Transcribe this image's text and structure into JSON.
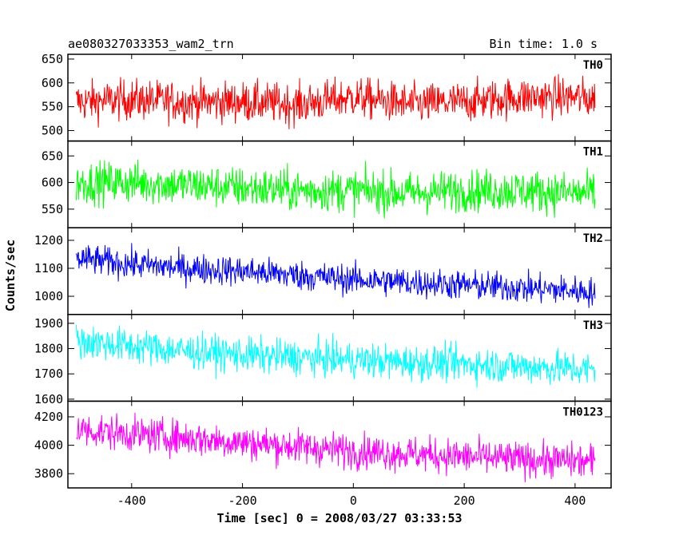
{
  "chart_data": {
    "type": "line",
    "title": "ae080327033353_wam2_trn",
    "subtitle": "Bin time: 1.0 s",
    "xlabel": "Time [sec] 0 = 2008/03/27 03:33:53",
    "ylabel": "Counts/sec",
    "xlim": [
      -515,
      465
    ],
    "x_ticks": [
      -400,
      -200,
      0,
      200,
      400
    ],
    "x_range": [
      -500,
      436
    ],
    "bin_time_s": 1.0,
    "grid": false,
    "legend": "none",
    "panels": [
      {
        "name": "TH0",
        "color": "#ff0000",
        "ylim": [
          478,
          660
        ],
        "y_ticks": [
          500,
          550,
          600,
          650
        ],
        "x": [
          -500,
          -400,
          -300,
          -200,
          -100,
          0,
          100,
          200,
          300,
          400,
          436
        ],
        "mean": [
          560,
          565,
          560,
          560,
          555,
          570,
          555,
          560,
          570,
          570,
          565
        ],
        "spread": 38
      },
      {
        "name": "TH1",
        "color": "#00ff00",
        "ylim": [
          515,
          678
        ],
        "y_ticks": [
          550,
          600,
          650
        ],
        "x": [
          -500,
          -400,
          -300,
          -200,
          -100,
          0,
          100,
          200,
          300,
          400,
          436
        ],
        "mean": [
          600,
          600,
          595,
          590,
          585,
          585,
          580,
          585,
          585,
          580,
          580
        ],
        "spread": 35
      },
      {
        "name": "TH2",
        "color": "#0000ff",
        "ylim": [
          935,
          1245
        ],
        "y_ticks": [
          1000,
          1100,
          1200
        ],
        "x": [
          -500,
          -400,
          -300,
          -200,
          -100,
          0,
          100,
          200,
          300,
          400,
          436
        ],
        "mean": [
          1135,
          1115,
          1100,
          1090,
          1075,
          1060,
          1050,
          1040,
          1030,
          1020,
          1015
        ],
        "spread": 48
      },
      {
        "name": "TH3",
        "color": "#00ffff",
        "ylim": [
          1592,
          1935
        ],
        "y_ticks": [
          1600,
          1700,
          1800,
          1900
        ],
        "x": [
          -500,
          -400,
          -300,
          -200,
          -100,
          0,
          100,
          200,
          300,
          400,
          436
        ],
        "mean": [
          1830,
          1810,
          1790,
          1775,
          1765,
          1755,
          1745,
          1740,
          1730,
          1720,
          1715
        ],
        "spread": 62
      },
      {
        "name": "TH0123",
        "color": "#ff00ff",
        "ylim": [
          3700,
          4310
        ],
        "y_ticks": [
          3800,
          4000,
          4200
        ],
        "x": [
          -500,
          -400,
          -300,
          -200,
          -100,
          0,
          100,
          200,
          300,
          400,
          436
        ],
        "mean": [
          4110,
          4080,
          4050,
          4020,
          3990,
          3960,
          3940,
          3920,
          3900,
          3890,
          3880
        ],
        "spread": 110
      }
    ]
  }
}
